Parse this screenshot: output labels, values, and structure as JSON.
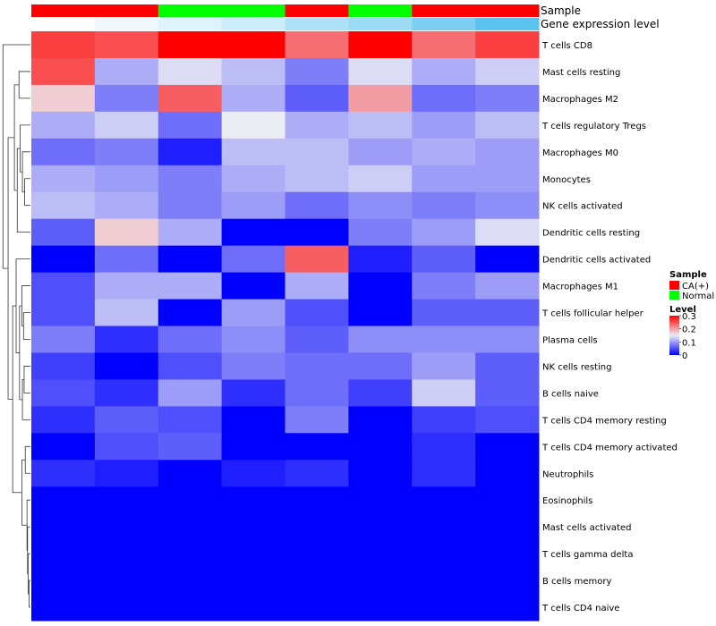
{
  "chart_data": {
    "type": "heatmap",
    "annotation_labels": [
      "Sample",
      "Gene expression level"
    ],
    "samples": [
      "CA(+)",
      "CA(+)",
      "Normal",
      "Normal",
      "CA(+)",
      "Normal",
      "CA(+)",
      "CA(+)"
    ],
    "gene_expression_level": [
      0.0,
      0.1,
      0.2,
      0.3,
      0.5,
      0.6,
      0.8,
      1.0
    ],
    "rows": [
      "T cells CD8",
      "Mast cells resting",
      "Macrophages M2",
      "T cells regulatory  Tregs",
      "Macrophages M0",
      "Monocytes",
      "NK cells activated",
      "Dendritic cells resting",
      "Dendritic cells activated",
      "Macrophages M1",
      "T cells follicular helper",
      "Plasma cells",
      "NK cells resting",
      "B cells naive",
      "T cells CD4 memory resting",
      "T cells CD4 memory activated",
      "Neutrophils",
      "Eosinophils",
      "Mast cells activated",
      "T cells gamma delta",
      "B cells memory",
      "T cells CD4 naive"
    ],
    "values": [
      [
        0.26,
        0.25,
        0.3,
        0.3,
        0.23,
        0.3,
        0.23,
        0.26
      ],
      [
        0.25,
        0.11,
        0.14,
        0.12,
        0.08,
        0.14,
        0.11,
        0.13
      ],
      [
        0.17,
        0.08,
        0.24,
        0.11,
        0.06,
        0.2,
        0.07,
        0.08
      ],
      [
        0.11,
        0.13,
        0.07,
        0.15,
        0.11,
        0.12,
        0.1,
        0.12
      ],
      [
        0.07,
        0.08,
        0.02,
        0.12,
        0.12,
        0.1,
        0.11,
        0.1
      ],
      [
        0.11,
        0.1,
        0.08,
        0.11,
        0.12,
        0.13,
        0.1,
        0.1
      ],
      [
        0.12,
        0.11,
        0.08,
        0.1,
        0.07,
        0.09,
        0.08,
        0.09
      ],
      [
        0.06,
        0.17,
        0.11,
        0.0,
        0.0,
        0.08,
        0.1,
        0.14
      ],
      [
        0.0,
        0.07,
        0.0,
        0.07,
        0.24,
        0.02,
        0.06,
        0.0
      ],
      [
        0.05,
        0.11,
        0.11,
        0.0,
        0.11,
        0.0,
        0.08,
        0.1
      ],
      [
        0.05,
        0.12,
        0.0,
        0.1,
        0.05,
        0.0,
        0.06,
        0.06
      ],
      [
        0.08,
        0.03,
        0.07,
        0.09,
        0.06,
        0.09,
        0.09,
        0.09
      ],
      [
        0.04,
        0.0,
        0.05,
        0.08,
        0.07,
        0.07,
        0.1,
        0.06
      ],
      [
        0.05,
        0.03,
        0.1,
        0.03,
        0.07,
        0.04,
        0.13,
        0.06
      ],
      [
        0.03,
        0.06,
        0.05,
        0.0,
        0.08,
        0.0,
        0.04,
        0.05
      ],
      [
        0.0,
        0.05,
        0.06,
        0.0,
        0.0,
        0.0,
        0.03,
        0.0
      ],
      [
        0.03,
        0.02,
        0.0,
        0.02,
        0.03,
        0.0,
        0.03,
        0.0
      ],
      [
        0.0,
        0.0,
        0.0,
        0.0,
        0.0,
        0.0,
        0.0,
        0.0
      ],
      [
        0.0,
        0.0,
        0.0,
        0.0,
        0.0,
        0.0,
        0.0,
        0.0
      ],
      [
        0.0,
        0.0,
        0.0,
        0.0,
        0.0,
        0.0,
        0.0,
        0.0
      ],
      [
        0.0,
        0.0,
        0.0,
        0.0,
        0.0,
        0.0,
        0.0,
        0.0
      ],
      [
        0.0,
        0.0,
        0.0,
        0.0,
        0.0,
        0.0,
        0.0,
        0.0
      ]
    ],
    "color_scale": {
      "min": 0,
      "mid": 0.15,
      "max": 0.3,
      "low_color": "#0000ff",
      "mid_color": "#ececf4",
      "high_color": "#ff0000"
    },
    "legend": {
      "sample_title": "Sample",
      "sample_entries": [
        {
          "label": "CA(+)",
          "color": "#ff0000"
        },
        {
          "label": "Normal",
          "color": "#00ff00"
        }
      ],
      "level_title": "Level",
      "level_ticks": [
        "0.3",
        "0.2",
        "0.1",
        "0"
      ],
      "level_tick_values": [
        0.3,
        0.2,
        0.1,
        0
      ],
      "placement": "right"
    },
    "annotation_colors": {
      "ca": "#ff0000",
      "normal": "#00ff00",
      "gene_low": "#ffffff",
      "gene_high": "#5bc3ef"
    },
    "dendrogram": "row clustering tree on left"
  }
}
